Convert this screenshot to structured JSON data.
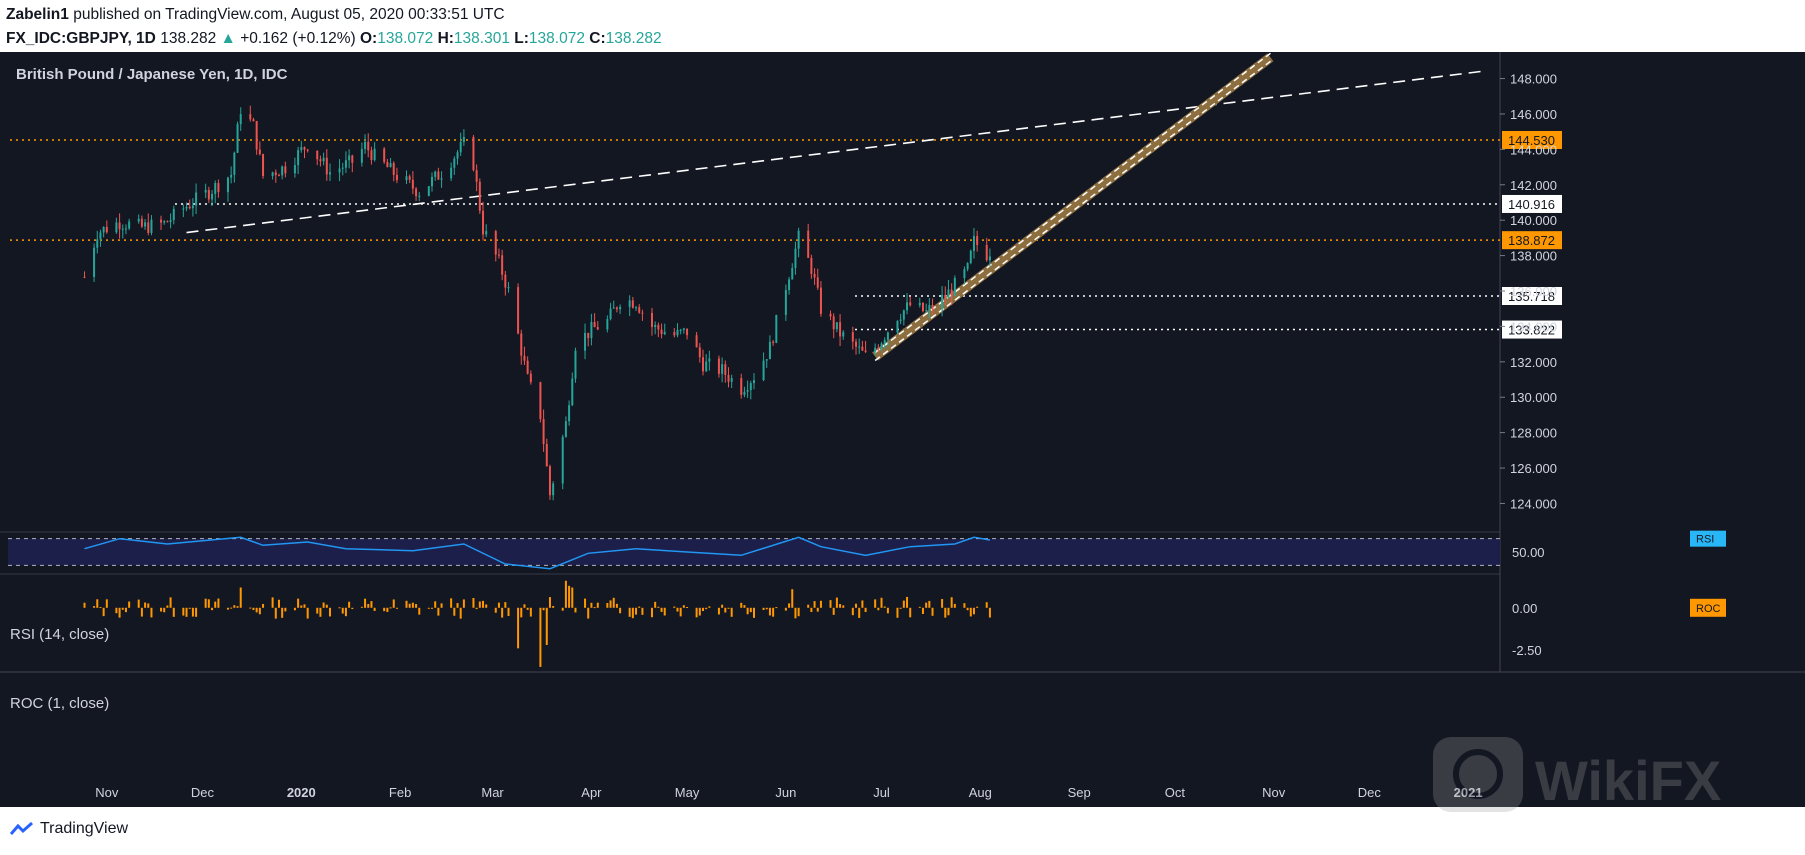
{
  "header": {
    "publisher": "Zabelin1",
    "published_text": "published on TradingView.com, August 05, 2020 00:33:51 UTC"
  },
  "quote": {
    "symbol": "FX_IDC:GBPJPY, 1D",
    "last": "138.282",
    "change": "+0.162 (+0.12%)",
    "o_label": "O:",
    "o_value": "138.072",
    "h_label": "H:",
    "h_value": "138.301",
    "l_label": "L:",
    "l_value": "138.072",
    "c_label": "C:",
    "c_value": "138.282"
  },
  "footer": {
    "brand": "TradingView"
  },
  "watermark": "WikiFX",
  "colors": {
    "background": "#131722",
    "candle_up": "#26a69a",
    "candle_down": "#ef5350",
    "level_orange": "#ff9800",
    "rsi_line": "#2196f3",
    "roc_bars": "#ff9800",
    "channel": "#8d6e3f"
  },
  "chart_data": {
    "type": "candlestick",
    "title": "British Pound / Japanese Yen, 1D, IDC",
    "x_ticks": [
      "Nov",
      "Dec",
      "2020",
      "Feb",
      "Mar",
      "Apr",
      "May",
      "Jun",
      "Jul",
      "Aug",
      "Sep",
      "Oct",
      "Nov",
      "Dec",
      "2021"
    ],
    "y_ticks": [
      "148.000",
      "146.000",
      "144.000",
      "142.000",
      "140.000",
      "138.000",
      "136.000",
      "134.000",
      "132.000",
      "130.000",
      "128.000",
      "126.000",
      "124.000"
    ],
    "ylim": [
      122.5,
      149.5
    ],
    "price_path": [
      {
        "date": "2019-10-25",
        "close": 136.8
      },
      {
        "date": "2019-10-29",
        "close": 139.3
      },
      {
        "date": "2019-11-05",
        "close": 139.9
      },
      {
        "date": "2019-11-12",
        "close": 139.6
      },
      {
        "date": "2019-11-19",
        "close": 139.8
      },
      {
        "date": "2019-11-26",
        "close": 140.8
      },
      {
        "date": "2019-12-03",
        "close": 141.6
      },
      {
        "date": "2019-12-10",
        "close": 142.6
      },
      {
        "date": "2019-12-13",
        "close": 146.3
      },
      {
        "date": "2019-12-17",
        "close": 145.3
      },
      {
        "date": "2019-12-20",
        "close": 142.5
      },
      {
        "date": "2019-12-27",
        "close": 143.0
      },
      {
        "date": "2020-01-03",
        "close": 144.3
      },
      {
        "date": "2020-01-10",
        "close": 142.7
      },
      {
        "date": "2020-01-17",
        "close": 143.3
      },
      {
        "date": "2020-01-21",
        "close": 144.2
      },
      {
        "date": "2020-01-24",
        "close": 143.6
      },
      {
        "date": "2020-01-31",
        "close": 142.5
      },
      {
        "date": "2020-02-07",
        "close": 141.6
      },
      {
        "date": "2020-02-14",
        "close": 142.7
      },
      {
        "date": "2020-02-21",
        "close": 144.3
      },
      {
        "date": "2020-02-24",
        "close": 143.2
      },
      {
        "date": "2020-02-27",
        "close": 139.5
      },
      {
        "date": "2020-03-03",
        "close": 137.6
      },
      {
        "date": "2020-03-06",
        "close": 136.0
      },
      {
        "date": "2020-03-09",
        "close": 133.5
      },
      {
        "date": "2020-03-12",
        "close": 131.0
      },
      {
        "date": "2020-03-16",
        "close": 129.0
      },
      {
        "date": "2020-03-18",
        "close": 126.0
      },
      {
        "date": "2020-03-19",
        "close": 124.5
      },
      {
        "date": "2020-03-24",
        "close": 128.5
      },
      {
        "date": "2020-03-27",
        "close": 133.0
      },
      {
        "date": "2020-04-01",
        "close": 133.8
      },
      {
        "date": "2020-04-06",
        "close": 134.3
      },
      {
        "date": "2020-04-10",
        "close": 135.5
      },
      {
        "date": "2020-04-15",
        "close": 135.4
      },
      {
        "date": "2020-04-20",
        "close": 134.0
      },
      {
        "date": "2020-04-27",
        "close": 133.5
      },
      {
        "date": "2020-05-01",
        "close": 133.7
      },
      {
        "date": "2020-05-06",
        "close": 131.9
      },
      {
        "date": "2020-05-12",
        "close": 131.5
      },
      {
        "date": "2020-05-18",
        "close": 130.5
      },
      {
        "date": "2020-05-22",
        "close": 131.2
      },
      {
        "date": "2020-05-27",
        "close": 132.8
      },
      {
        "date": "2020-06-02",
        "close": 137.0
      },
      {
        "date": "2020-06-05",
        "close": 139.0
      },
      {
        "date": "2020-06-09",
        "close": 137.3
      },
      {
        "date": "2020-06-12",
        "close": 135.0
      },
      {
        "date": "2020-06-18",
        "close": 133.6
      },
      {
        "date": "2020-06-23",
        "close": 132.8
      },
      {
        "date": "2020-06-26",
        "close": 132.3
      },
      {
        "date": "2020-06-30",
        "close": 133.0
      },
      {
        "date": "2020-07-06",
        "close": 134.6
      },
      {
        "date": "2020-07-10",
        "close": 135.2
      },
      {
        "date": "2020-07-15",
        "close": 134.8
      },
      {
        "date": "2020-07-21",
        "close": 135.7
      },
      {
        "date": "2020-07-24",
        "close": 136.3
      },
      {
        "date": "2020-07-28",
        "close": 137.2
      },
      {
        "date": "2020-07-30",
        "close": 138.8
      },
      {
        "date": "2020-08-03",
        "close": 138.1
      },
      {
        "date": "2020-08-04",
        "close": 138.28
      }
    ],
    "horizontal_levels": [
      {
        "value": 144.53,
        "label": "144.530",
        "style": "orange-dotted"
      },
      {
        "value": 140.916,
        "label": "140.916",
        "style": "white-dotted"
      },
      {
        "value": 138.872,
        "label": "138.872",
        "style": "orange-dotted"
      },
      {
        "value": 135.718,
        "label": "135.718",
        "style": "white-dotted"
      },
      {
        "value": 133.822,
        "label": "133.822",
        "style": "white-dotted"
      }
    ],
    "trendlines": [
      {
        "style": "white-dashed",
        "start": {
          "date": "2019-11-26",
          "value": 139.3
        },
        "end": {
          "date": "2021-01-05",
          "value": 148.4
        }
      },
      {
        "style": "channel",
        "start": {
          "date": "2020-06-29",
          "value": 132.3
        },
        "end": {
          "date": "2020-10-31",
          "value": 149.2
        }
      }
    ],
    "last_price_marker": {
      "date": "2020-08-04",
      "value": 138.282
    },
    "rsi": {
      "label": "RSI (14, close)",
      "tag": "RSI",
      "tick": "50.00",
      "band_upper": 70,
      "band_lower": 30,
      "ylim": [
        20,
        80
      ],
      "points": [
        {
          "date": "2019-10-25",
          "value": 55
        },
        {
          "date": "2019-11-05",
          "value": 70
        },
        {
          "date": "2019-11-20",
          "value": 62
        },
        {
          "date": "2019-12-13",
          "value": 72
        },
        {
          "date": "2019-12-20",
          "value": 60
        },
        {
          "date": "2020-01-03",
          "value": 65
        },
        {
          "date": "2020-01-15",
          "value": 55
        },
        {
          "date": "2020-02-05",
          "value": 52
        },
        {
          "date": "2020-02-21",
          "value": 62
        },
        {
          "date": "2020-03-05",
          "value": 32
        },
        {
          "date": "2020-03-19",
          "value": 25
        },
        {
          "date": "2020-03-31",
          "value": 48
        },
        {
          "date": "2020-04-15",
          "value": 55
        },
        {
          "date": "2020-05-01",
          "value": 50
        },
        {
          "date": "2020-05-18",
          "value": 45
        },
        {
          "date": "2020-06-05",
          "value": 72
        },
        {
          "date": "2020-06-12",
          "value": 58
        },
        {
          "date": "2020-06-26",
          "value": 45
        },
        {
          "date": "2020-07-10",
          "value": 58
        },
        {
          "date": "2020-07-24",
          "value": 62
        },
        {
          "date": "2020-07-30",
          "value": 72
        },
        {
          "date": "2020-08-04",
          "value": 68
        }
      ]
    },
    "roc": {
      "label": "ROC (1, close)",
      "tag": "ROC",
      "ticks": [
        "0.00",
        "-2.50"
      ],
      "ylim": [
        -3.8,
        2.0
      ],
      "notable": [
        {
          "date": "2020-03-09",
          "value": -2.4
        },
        {
          "date": "2020-03-16",
          "value": -3.5
        },
        {
          "date": "2020-03-18",
          "value": -2.2
        },
        {
          "date": "2020-03-24",
          "value": 1.6
        },
        {
          "date": "2020-03-25",
          "value": 1.3
        },
        {
          "date": "2020-03-26",
          "value": 1.2
        },
        {
          "date": "2019-12-13",
          "value": 1.2
        },
        {
          "date": "2020-06-03",
          "value": 1.1
        }
      ]
    }
  }
}
